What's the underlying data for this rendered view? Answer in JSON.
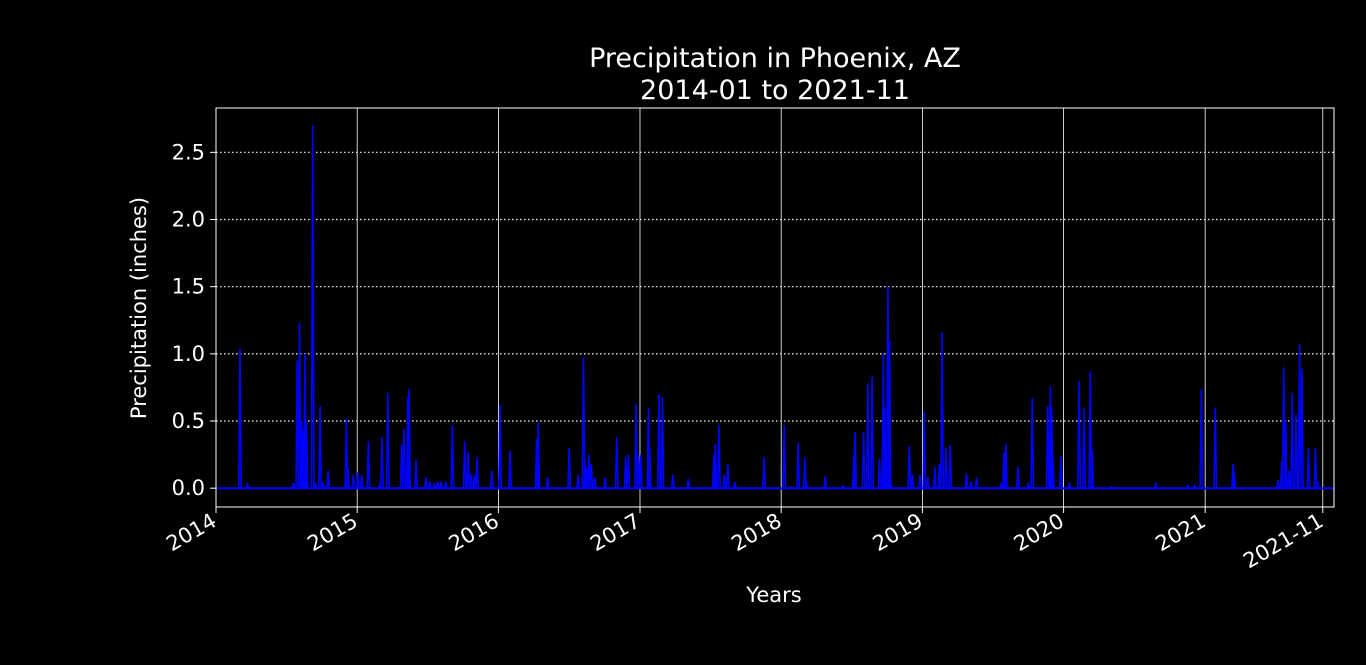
{
  "chart_data": {
    "type": "line",
    "title_line1": "Precipitation in Phoenix, AZ",
    "title_line2": "2014-01 to 2021-11",
    "xlabel": "Years",
    "ylabel": "Precipitation (inches)",
    "xlim": [
      "2014-01-01",
      "2021-11-30"
    ],
    "ylim": [
      -0.14,
      2.83
    ],
    "yticks": [
      0.0,
      0.5,
      1.0,
      1.5,
      2.0,
      2.5
    ],
    "ytick_labels": [
      "0.0",
      "0.5",
      "1.0",
      "1.5",
      "2.0",
      "2.5"
    ],
    "xticks": [
      "2014-01-01",
      "2015-01-01",
      "2016-01-01",
      "2017-01-01",
      "2018-01-01",
      "2019-01-01",
      "2020-01-01",
      "2021-01-01",
      "2021-11-01"
    ],
    "xtick_labels": [
      "2014",
      "2015",
      "2016",
      "2017",
      "2018",
      "2019",
      "2020",
      "2021",
      "2021-11"
    ],
    "grid": {
      "x": "solid",
      "y": "dotted"
    },
    "colors": {
      "background": "#000000",
      "line": "#0000ff",
      "axes": "#ffffff",
      "grid": "#ffffff"
    },
    "series": [
      {
        "values": [
          [
            "2014-03-04",
            1.04
          ],
          [
            "2014-03-23",
            0.03
          ],
          [
            "2014-07-20",
            0.04
          ],
          [
            "2014-07-30",
            0.95
          ],
          [
            "2014-08-05",
            1.23
          ],
          [
            "2014-08-10",
            0.5
          ],
          [
            "2014-08-14",
            0.43
          ],
          [
            "2014-08-19",
            1.0
          ],
          [
            "2014-08-23",
            0.5
          ],
          [
            "2014-09-08",
            2.7
          ],
          [
            "2014-09-15",
            0.04
          ],
          [
            "2014-09-27",
            0.61
          ],
          [
            "2014-10-05",
            0.04
          ],
          [
            "2014-10-18",
            0.13
          ],
          [
            "2014-12-04",
            0.52
          ],
          [
            "2014-12-08",
            0.16
          ],
          [
            "2014-12-22",
            0.1
          ],
          [
            "2015-01-03",
            0.12
          ],
          [
            "2015-01-13",
            0.1
          ],
          [
            "2015-01-30",
            0.35
          ],
          [
            "2015-03-01",
            0.03
          ],
          [
            "2015-03-06",
            0.38
          ],
          [
            "2015-03-21",
            0.71
          ],
          [
            "2015-04-26",
            0.33
          ],
          [
            "2015-05-02",
            0.44
          ],
          [
            "2015-05-12",
            0.68
          ],
          [
            "2015-05-15",
            0.74
          ],
          [
            "2015-06-02",
            0.21
          ],
          [
            "2015-06-28",
            0.08
          ],
          [
            "2015-07-08",
            0.05
          ],
          [
            "2015-07-20",
            0.03
          ],
          [
            "2015-07-28",
            0.05
          ],
          [
            "2015-08-06",
            0.05
          ],
          [
            "2015-08-18",
            0.05
          ],
          [
            "2015-09-04",
            0.47
          ],
          [
            "2015-10-06",
            0.35
          ],
          [
            "2015-10-15",
            0.27
          ],
          [
            "2015-10-22",
            0.1
          ],
          [
            "2015-10-31",
            0.1
          ],
          [
            "2015-11-07",
            0.23
          ],
          [
            "2015-12-15",
            0.13
          ],
          [
            "2016-01-05",
            0.62
          ],
          [
            "2016-01-31",
            0.28
          ],
          [
            "2016-04-09",
            0.37
          ],
          [
            "2016-04-13",
            0.49
          ],
          [
            "2016-05-07",
            0.08
          ],
          [
            "2016-07-02",
            0.3
          ],
          [
            "2016-07-25",
            0.1
          ],
          [
            "2016-08-08",
            0.97
          ],
          [
            "2016-08-12",
            0.2
          ],
          [
            "2016-08-16",
            0.15
          ],
          [
            "2016-08-22",
            0.25
          ],
          [
            "2016-08-28",
            0.18
          ],
          [
            "2016-09-06",
            0.08
          ],
          [
            "2016-10-03",
            0.08
          ],
          [
            "2016-11-02",
            0.38
          ],
          [
            "2016-11-25",
            0.23
          ],
          [
            "2016-12-02",
            0.25
          ],
          [
            "2016-12-22",
            0.63
          ],
          [
            "2016-12-27",
            0.25
          ],
          [
            "2017-01-03",
            0.25
          ],
          [
            "2017-01-23",
            0.6
          ],
          [
            "2017-01-26",
            0.3
          ],
          [
            "2017-02-19",
            0.7
          ],
          [
            "2017-02-28",
            0.68
          ],
          [
            "2017-03-27",
            0.1
          ],
          [
            "2017-05-06",
            0.07
          ],
          [
            "2017-07-11",
            0.25
          ],
          [
            "2017-07-15",
            0.33
          ],
          [
            "2017-07-24",
            0.47
          ],
          [
            "2017-08-07",
            0.1
          ],
          [
            "2017-08-16",
            0.18
          ],
          [
            "2017-09-03",
            0.05
          ],
          [
            "2017-11-18",
            0.23
          ],
          [
            "2018-01-09",
            0.47
          ],
          [
            "2018-01-27",
            0.01
          ],
          [
            "2018-02-14",
            0.34
          ],
          [
            "2018-03-03",
            0.23
          ],
          [
            "2018-03-07",
            0.05
          ],
          [
            "2018-04-25",
            0.09
          ],
          [
            "2018-06-10",
            0.02
          ],
          [
            "2018-07-08",
            0.25
          ],
          [
            "2018-07-11",
            0.42
          ],
          [
            "2018-08-02",
            0.42
          ],
          [
            "2018-08-13",
            0.78
          ],
          [
            "2018-08-24",
            0.83
          ],
          [
            "2018-09-12",
            0.22
          ],
          [
            "2018-09-22",
            1.0
          ],
          [
            "2018-09-26",
            0.6
          ],
          [
            "2018-10-04",
            1.5
          ],
          [
            "2018-10-08",
            1.1
          ],
          [
            "2018-10-13",
            0.02
          ],
          [
            "2018-11-28",
            0.31
          ],
          [
            "2018-12-06",
            0.1
          ],
          [
            "2018-12-26",
            0.1
          ],
          [
            "2019-01-06",
            0.57
          ],
          [
            "2019-01-15",
            0.08
          ],
          [
            "2019-02-02",
            0.16
          ],
          [
            "2019-02-14",
            0.18
          ],
          [
            "2019-02-21",
            1.16
          ],
          [
            "2019-03-03",
            0.3
          ],
          [
            "2019-03-14",
            0.32
          ],
          [
            "2019-04-25",
            0.11
          ],
          [
            "2019-05-07",
            0.05
          ],
          [
            "2019-05-21",
            0.08
          ],
          [
            "2019-07-24",
            0.04
          ],
          [
            "2019-07-31",
            0.27
          ],
          [
            "2019-08-05",
            0.33
          ],
          [
            "2019-09-05",
            0.16
          ],
          [
            "2019-10-02",
            0.03
          ],
          [
            "2019-10-12",
            0.67
          ],
          [
            "2019-11-21",
            0.61
          ],
          [
            "2019-11-28",
            0.76
          ],
          [
            "2019-12-01",
            0.6
          ],
          [
            "2019-12-04",
            0.24
          ],
          [
            "2019-12-25",
            0.24
          ],
          [
            "2020-01-16",
            0.03
          ],
          [
            "2020-02-10",
            0.8
          ],
          [
            "2020-02-23",
            0.6
          ],
          [
            "2020-03-10",
            0.87
          ],
          [
            "2020-03-15",
            0.28
          ],
          [
            "2020-05-04",
            0.01
          ],
          [
            "2020-08-26",
            0.03
          ],
          [
            "2020-11-17",
            0.02
          ],
          [
            "2020-12-04",
            0.02
          ],
          [
            "2020-12-22",
            0.74
          ],
          [
            "2021-01-27",
            0.6
          ],
          [
            "2021-03-14",
            0.18
          ],
          [
            "2021-03-17",
            0.12
          ],
          [
            "2021-07-08",
            0.06
          ],
          [
            "2021-07-18",
            0.2
          ],
          [
            "2021-07-23",
            0.9
          ],
          [
            "2021-07-28",
            0.5
          ],
          [
            "2021-08-06",
            0.13
          ],
          [
            "2021-08-14",
            0.71
          ],
          [
            "2021-08-24",
            0.55
          ],
          [
            "2021-09-02",
            1.07
          ],
          [
            "2021-09-08",
            0.89
          ],
          [
            "2021-09-25",
            0.3
          ],
          [
            "2021-10-13",
            0.3
          ],
          [
            "2021-10-18",
            0.05
          ]
        ]
      }
    ]
  }
}
